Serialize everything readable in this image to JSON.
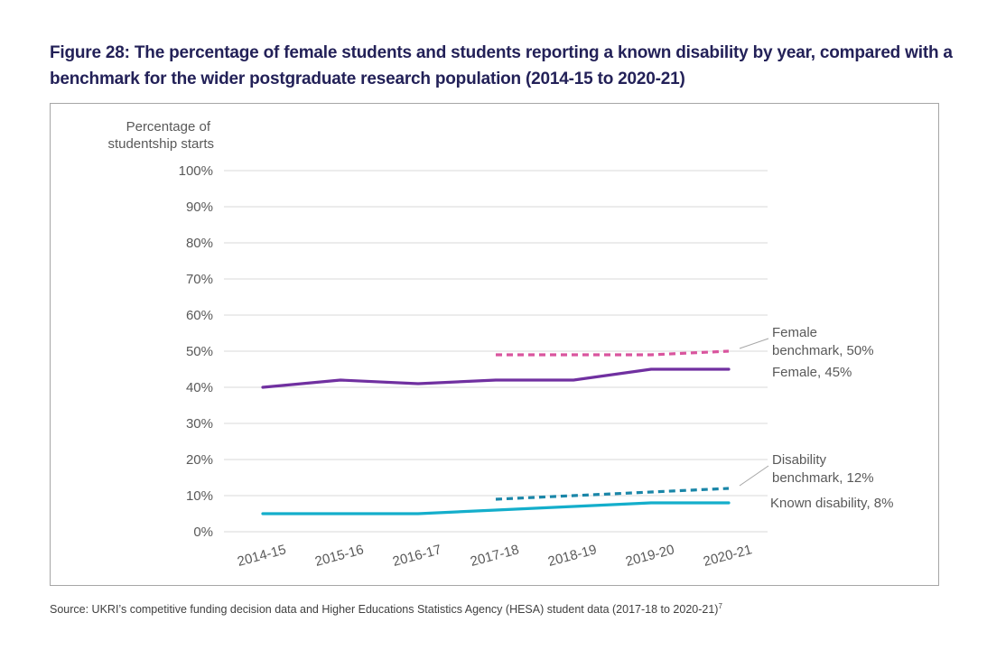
{
  "figure": {
    "title": "Figure 28: The percentage of female students and students reporting a known disability by year, compared with a benchmark for the wider postgraduate research population (2014-15 to 2020-21)",
    "source": "Source: UKRI’s competitive funding decision data and Higher Educations Statistics Agency (HESA) student data (2017-18 to 2020-21)",
    "source_footnote": "7"
  },
  "chart_data": {
    "type": "line",
    "title": "Figure 28: The percentage of female students and students reporting a known disability by year, compared with a benchmark for the wider postgraduate research population (2014-15 to 2020-21)",
    "xlabel": "",
    "ylabel_lines": [
      "Percentage of",
      "studentship starts"
    ],
    "ylabel": "Percentage of studentship starts",
    "categories": [
      "2014-15",
      "2015-16",
      "2016-17",
      "2017-18",
      "2018-19",
      "2019-20",
      "2020-21"
    ],
    "ylim": [
      0,
      100
    ],
    "yticks": [
      0,
      10,
      20,
      30,
      40,
      50,
      60,
      70,
      80,
      90,
      100
    ],
    "ytick_labels": [
      "0%",
      "10%",
      "20%",
      "30%",
      "40%",
      "50%",
      "60%",
      "70%",
      "80%",
      "90%",
      "100%"
    ],
    "grid": true,
    "legend": "direct labels at right end of lines",
    "series": [
      {
        "name": "Female",
        "label_lines": [
          "Female, 45%"
        ],
        "values": [
          40,
          42,
          41,
          42,
          42,
          45,
          45
        ],
        "color": "#7030a0",
        "style": "solid"
      },
      {
        "name": "Female benchmark",
        "label_lines": [
          "Female",
          "benchmark, 50%"
        ],
        "values": [
          null,
          null,
          null,
          49,
          49,
          49,
          50
        ],
        "color": "#d9559e",
        "style": "dashed"
      },
      {
        "name": "Known disability",
        "label_lines": [
          "Known disability, 8%"
        ],
        "values": [
          5,
          5,
          5,
          6,
          7,
          8,
          8
        ],
        "color": "#14aecb",
        "style": "solid"
      },
      {
        "name": "Disability benchmark",
        "label_lines": [
          "Disability",
          "benchmark, 12%"
        ],
        "values": [
          null,
          null,
          null,
          9,
          10,
          11,
          12
        ],
        "color": "#1a86a8",
        "style": "dashed"
      }
    ]
  }
}
